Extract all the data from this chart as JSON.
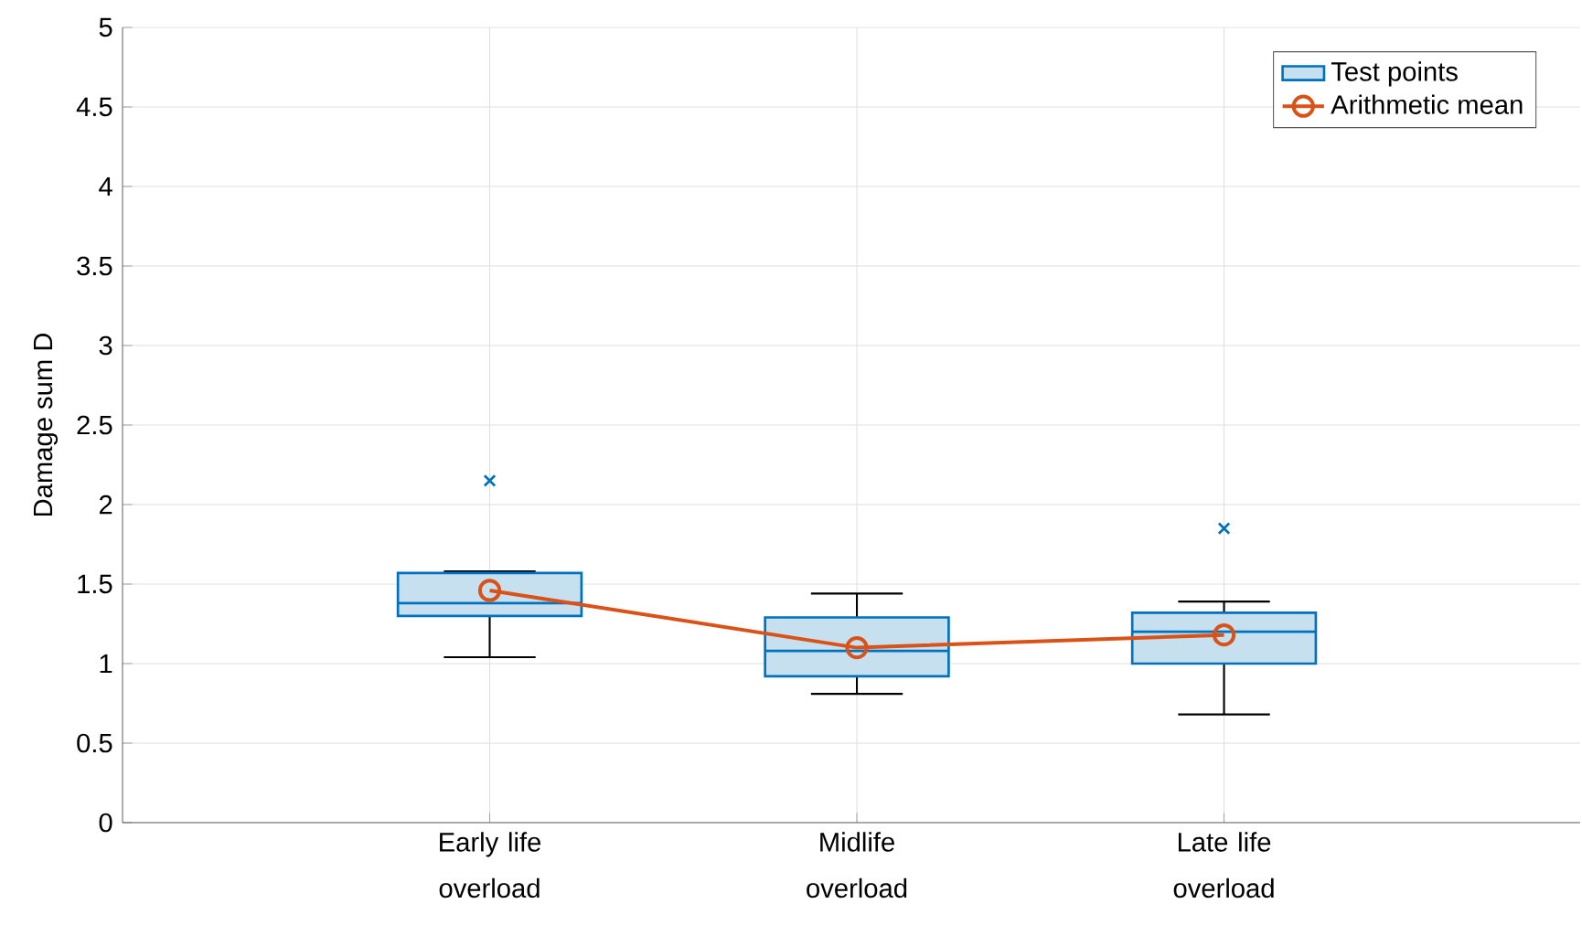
{
  "chart_data": {
    "type": "box",
    "ylabel": "Damage sum D",
    "categories": [
      "Early life overload",
      "Midlife overload",
      "Late life overload"
    ],
    "series": [
      {
        "name": "Test points",
        "type": "box",
        "color": "#0072bd",
        "boxes": [
          {
            "low": 1.04,
            "q1": 1.3,
            "median": 1.38,
            "q3": 1.57,
            "high": 1.58,
            "outliers": [
              2.15
            ]
          },
          {
            "low": 0.81,
            "q1": 0.92,
            "median": 1.08,
            "q3": 1.29,
            "high": 1.44
          },
          {
            "low": 0.68,
            "q1": 1.0,
            "median": 1.2,
            "q3": 1.32,
            "high": 1.39,
            "outliers": [
              1.85
            ]
          }
        ]
      },
      {
        "name": "Arithmetic mean",
        "type": "line",
        "color": "#d95319",
        "marker": "circle",
        "values": [
          1.46,
          1.1,
          1.18
        ]
      }
    ],
    "ylim": [
      0,
      5
    ],
    "yticks": [
      0,
      0.5,
      1,
      1.5,
      2,
      2.5,
      3,
      3.5,
      4,
      4.5,
      5
    ],
    "grid": true,
    "legend": "top right"
  }
}
